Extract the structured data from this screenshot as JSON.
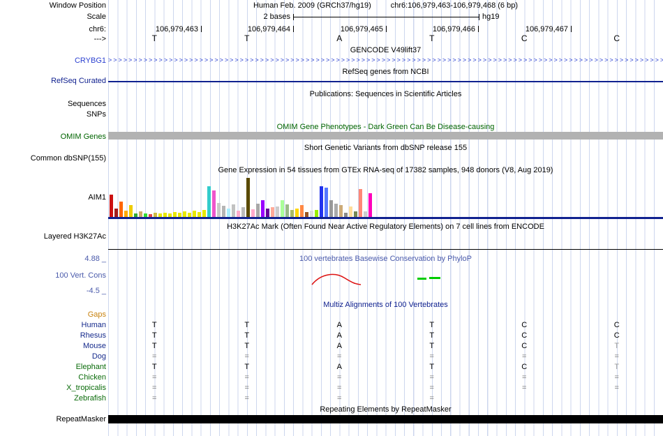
{
  "colors": {
    "gene_blue": "#2a3fd0",
    "refseq_navy": "#10218f",
    "conservation_blue": "#4a5aab",
    "omim_dark_green": "#006400",
    "species_green": "#0a6b0a",
    "gaps_orange": "#c8820f",
    "gridline_blue": "#ccd6ee",
    "omim_bar_gray": "#b2b2b2",
    "repeatmasker_black": "#000000",
    "phylop_negative_red": "#dd1111",
    "phylop_positive_green": "#00cc00"
  },
  "header": {
    "window_position_label": "Window Position",
    "assembly_title": "Human Feb. 2009 (GRCh37/hg19)",
    "position_title": "chr6:106,979,463-106,979,468 (6 bp)",
    "scale_label": "Scale",
    "scale_value": "2 bases",
    "scale_assembly": "hg19",
    "chrom_label": "chr6:",
    "strand_label": "--->",
    "coordinates": [
      "106,979,463",
      "106,979,464",
      "106,979,465",
      "106,979,466",
      "106,979,467"
    ],
    "sequence": [
      "T",
      "T",
      "A",
      "T",
      "C",
      "C"
    ]
  },
  "tracks": {
    "gencode": {
      "title": "GENCODE V49lift37",
      "gene_label": "CRYBG1"
    },
    "refseq": {
      "title": "RefSeq genes from NCBI",
      "label": "RefSeq Curated"
    },
    "publications": {
      "title": "Publications: Sequences in Scientific Articles",
      "label_sequences": "Sequences",
      "label_snps": "SNPs"
    },
    "omim": {
      "title": "OMIM Gene Phenotypes - Dark Green Can Be Disease-causing",
      "label": "OMIM Genes"
    },
    "dbsnp": {
      "title": "Short Genetic Variants from dbSNP release 155",
      "label": "Common dbSNP(155)"
    },
    "gtex": {
      "title": "Gene Expression in 54 tissues from GTEx RNA-seq of 17382 samples, 948 donors (V8, Aug 2019)",
      "label": "AIM1",
      "bars": [
        {
          "h": 32,
          "c": "#cc1111"
        },
        {
          "h": 12,
          "c": "#a31d1d"
        },
        {
          "h": 22,
          "c": "#ff6600"
        },
        {
          "h": 9,
          "c": "#ffaa00"
        },
        {
          "h": 17,
          "c": "#eecc00"
        },
        {
          "h": 5,
          "c": "#33aa33"
        },
        {
          "h": 8,
          "c": "#ccaa66"
        },
        {
          "h": 5,
          "c": "#33dd33"
        },
        {
          "h": 4,
          "c": "#dd4444"
        },
        {
          "h": 6,
          "c": "#ccbb44"
        },
        {
          "h": 5,
          "c": "#e8e800"
        },
        {
          "h": 6,
          "c": "#e8e800"
        },
        {
          "h": 5,
          "c": "#e8e800"
        },
        {
          "h": 7,
          "c": "#e8e800"
        },
        {
          "h": 6,
          "c": "#e8e800"
        },
        {
          "h": 8,
          "c": "#e8e800"
        },
        {
          "h": 6,
          "c": "#e8e800"
        },
        {
          "h": 9,
          "c": "#e8e800"
        },
        {
          "h": 7,
          "c": "#e8e800"
        },
        {
          "h": 10,
          "c": "#e8e800"
        },
        {
          "h": 44,
          "c": "#33cccc"
        },
        {
          "h": 38,
          "c": "#ee55cc"
        },
        {
          "h": 20,
          "c": "#c9c9c9"
        },
        {
          "h": 16,
          "c": "#b5b5b5"
        },
        {
          "h": 12,
          "c": "#aaeeff"
        },
        {
          "h": 18,
          "c": "#c2c2c2"
        },
        {
          "h": 9,
          "c": "#ffaacc"
        },
        {
          "h": 14,
          "c": "#bbbbbb"
        },
        {
          "h": 56,
          "c": "#5a4a00"
        },
        {
          "h": 11,
          "c": "#ffaacc"
        },
        {
          "h": 19,
          "c": "#a8a8a8"
        },
        {
          "h": 24,
          "c": "#9900ff"
        },
        {
          "h": 12,
          "c": "#660099"
        },
        {
          "h": 14,
          "c": "#ffaa99"
        },
        {
          "h": 15,
          "c": "#cccccc"
        },
        {
          "h": 24,
          "c": "#aaff99"
        },
        {
          "h": 18,
          "c": "#99bb88"
        },
        {
          "h": 10,
          "c": "#aabb66"
        },
        {
          "h": 12,
          "c": "#ffd700"
        },
        {
          "h": 17,
          "c": "#ff8844"
        },
        {
          "h": 7,
          "c": "#995522"
        },
        {
          "h": 9,
          "c": "#dddddd"
        },
        {
          "h": 10,
          "c": "#99ee00"
        },
        {
          "h": 44,
          "c": "#2233ee"
        },
        {
          "h": 42,
          "c": "#5577ff"
        },
        {
          "h": 24,
          "c": "#999999"
        },
        {
          "h": 19,
          "c": "#ababab"
        },
        {
          "h": 17,
          "c": "#ccaa77"
        },
        {
          "h": 6,
          "c": "#8a8a8a"
        },
        {
          "h": 15,
          "c": "#ffdd99"
        },
        {
          "h": 8,
          "c": "#778855"
        },
        {
          "h": 40,
          "c": "#ff8877"
        },
        {
          "h": 8,
          "c": "#cccccc"
        },
        {
          "h": 34,
          "c": "#ff00bb"
        }
      ]
    },
    "h3k27ac": {
      "title": "H3K27Ac Mark (Often Found Near Active Regulatory Elements) on 7 cell lines from ENCODE",
      "label": "Layered H3K27Ac"
    },
    "conservation": {
      "title": "100 vertebrates Basewise Conservation by PhyloP",
      "label": "100 Vert. Cons",
      "max_value": "4.88 _",
      "min_value": "-4.5 _"
    },
    "multiz": {
      "title": "Multiz Alignments of 100 Vertebrates",
      "rows": [
        {
          "name": "Gaps",
          "clade": "gaps",
          "bases": [
            "",
            "",
            "",
            "",
            "",
            ""
          ],
          "dim": []
        },
        {
          "name": "Human",
          "clade": "mammal",
          "bases": [
            "T",
            "T",
            "A",
            "T",
            "C",
            "C"
          ],
          "dim": []
        },
        {
          "name": "Rhesus",
          "clade": "mammal",
          "bases": [
            "T",
            "T",
            "A",
            "T",
            "C",
            "C"
          ],
          "dim": []
        },
        {
          "name": "Mouse",
          "clade": "mammal",
          "bases": [
            "T",
            "T",
            "A",
            "T",
            "C",
            "T"
          ],
          "dim": [
            5
          ]
        },
        {
          "name": "Dog",
          "clade": "mammal",
          "bases": [
            "=",
            "=",
            "=",
            "=",
            "=",
            "="
          ],
          "dim": []
        },
        {
          "name": "Elephant",
          "clade": "vertebrate",
          "bases": [
            "T",
            "T",
            "A",
            "T",
            "C",
            "T"
          ],
          "dim": [
            5
          ]
        },
        {
          "name": "Chicken",
          "clade": "vertebrate",
          "bases": [
            "=",
            "=",
            "=",
            "=",
            "=",
            "="
          ],
          "dim": []
        },
        {
          "name": "X_tropicalis",
          "clade": "vertebrate",
          "bases": [
            "=",
            "=",
            "=",
            "=",
            "=",
            "="
          ],
          "dim": []
        },
        {
          "name": "Zebrafish",
          "clade": "vertebrate",
          "bases": [
            "=",
            "=",
            "=",
            "=",
            "",
            ""
          ],
          "dim": []
        }
      ]
    },
    "repeatmasker": {
      "title": "Repeating Elements by RepeatMasker",
      "label": "RepeatMasker"
    }
  }
}
